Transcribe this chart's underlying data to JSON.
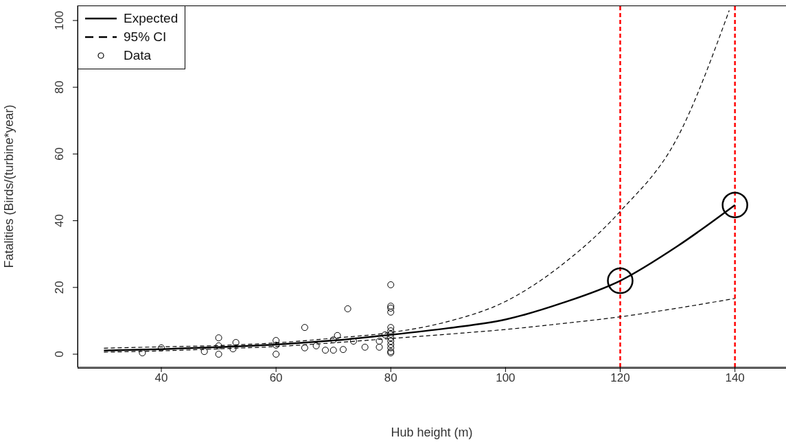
{
  "chart_data": {
    "type": "line",
    "xlabel": "Hub height (m)",
    "ylabel": "Fatalities (Birds/(turbine*year)",
    "xlim": [
      25.4,
      148.9
    ],
    "ylim": [
      -3.9,
      104.5
    ],
    "xticks": [
      40,
      60,
      80,
      100,
      120,
      140
    ],
    "yticks": [
      0,
      20,
      40,
      60,
      80,
      100
    ],
    "legend": "top left",
    "series": [
      {
        "name": "Expected",
        "line_style": "solid",
        "color": "#000000",
        "x": [
          30,
          40,
          50,
          60,
          70,
          80,
          90,
          100,
          110,
          120,
          130,
          140
        ],
        "values": [
          1.1,
          1.5,
          2.1,
          2.9,
          4.1,
          5.8,
          7.8,
          10.4,
          15.4,
          22,
          32.4,
          44.7
        ]
      },
      {
        "name": "95% CI",
        "line_style": "dashed",
        "color": "#000000",
        "x": [
          30,
          40,
          50,
          60,
          70,
          80,
          90,
          100,
          110,
          120,
          130,
          139
        ],
        "values": [
          1.8,
          2.2,
          2.6,
          3.4,
          4.8,
          6.5,
          9.8,
          15.8,
          27,
          42.8,
          65,
          103
        ]
      },
      {
        "line_style": "dashed",
        "color": "#000000",
        "x": [
          30,
          40,
          50,
          60,
          70,
          80,
          90,
          100,
          110,
          120,
          130,
          140
        ],
        "values": [
          0.6,
          1.0,
          1.6,
          2.3,
          3.4,
          4.7,
          6,
          7.4,
          9.2,
          11.2,
          13.8,
          16.7
        ]
      },
      {
        "name": "Data",
        "type": "scatter",
        "marker": "circle",
        "color": "#000000",
        "x": [
          36.7,
          40,
          47.5,
          50,
          50,
          50,
          52.5,
          53,
          60,
          60,
          60,
          65,
          65,
          67,
          68.6,
          70,
          71.7,
          70.7,
          72.5,
          70,
          73.5,
          75.5,
          78,
          78,
          79,
          80,
          80,
          80,
          80,
          80,
          80,
          80,
          80,
          80,
          80,
          80,
          80,
          80
        ],
        "values": [
          0.4,
          1.9,
          0.8,
          4.9,
          0,
          2.5,
          1.6,
          3.5,
          4.1,
          0,
          2.7,
          8.0,
          1.9,
          2.5,
          1.2,
          1.2,
          1.4,
          5.6,
          13.6,
          4.3,
          3.9,
          2.1,
          2.1,
          3.9,
          5.8,
          20.8,
          14.4,
          13.8,
          12.6,
          8.0,
          7,
          6,
          4.9,
          3.9,
          2.9,
          1.9,
          0.8,
          0.4
        ]
      },
      {
        "type": "scatter",
        "marker": "circle",
        "color": "#000000",
        "x": [
          120,
          140
        ],
        "values": [
          22,
          44.7
        ]
      }
    ],
    "ref_lines": [
      {
        "axis": "x",
        "value": 120,
        "color": "#ff0000",
        "line_style": "dashed"
      },
      {
        "axis": "x",
        "value": 140,
        "color": "#ff0000",
        "line_style": "dashed"
      }
    ]
  }
}
